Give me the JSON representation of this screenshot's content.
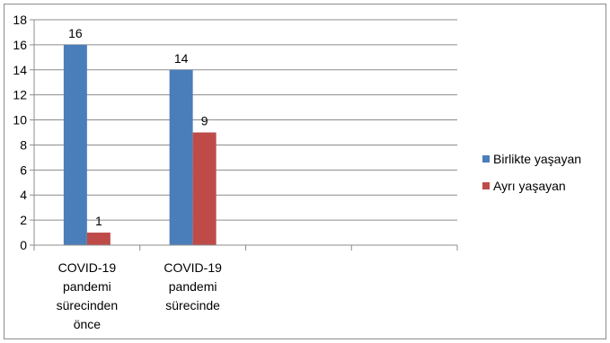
{
  "chart_data": {
    "type": "bar",
    "categories": [
      [
        "COVID-19",
        "pandemi",
        "sürecinden",
        "önce"
      ],
      [
        "COVID-19",
        "pandemi",
        "sürecinde"
      ],
      [],
      []
    ],
    "series": [
      {
        "name": "Birlikte yaşayan",
        "values": [
          16,
          14,
          null,
          null
        ],
        "color": "#4a7ebb"
      },
      {
        "name": "Ayrı yaşayan",
        "values": [
          1,
          9,
          null,
          null
        ],
        "color": "#be4b48"
      }
    ],
    "ylim": [
      0,
      18
    ],
    "yticks": [
      "0",
      "2",
      "4",
      "6",
      "8",
      "10",
      "12",
      "14",
      "16",
      "18"
    ],
    "legend_position": "right",
    "grid": true
  }
}
